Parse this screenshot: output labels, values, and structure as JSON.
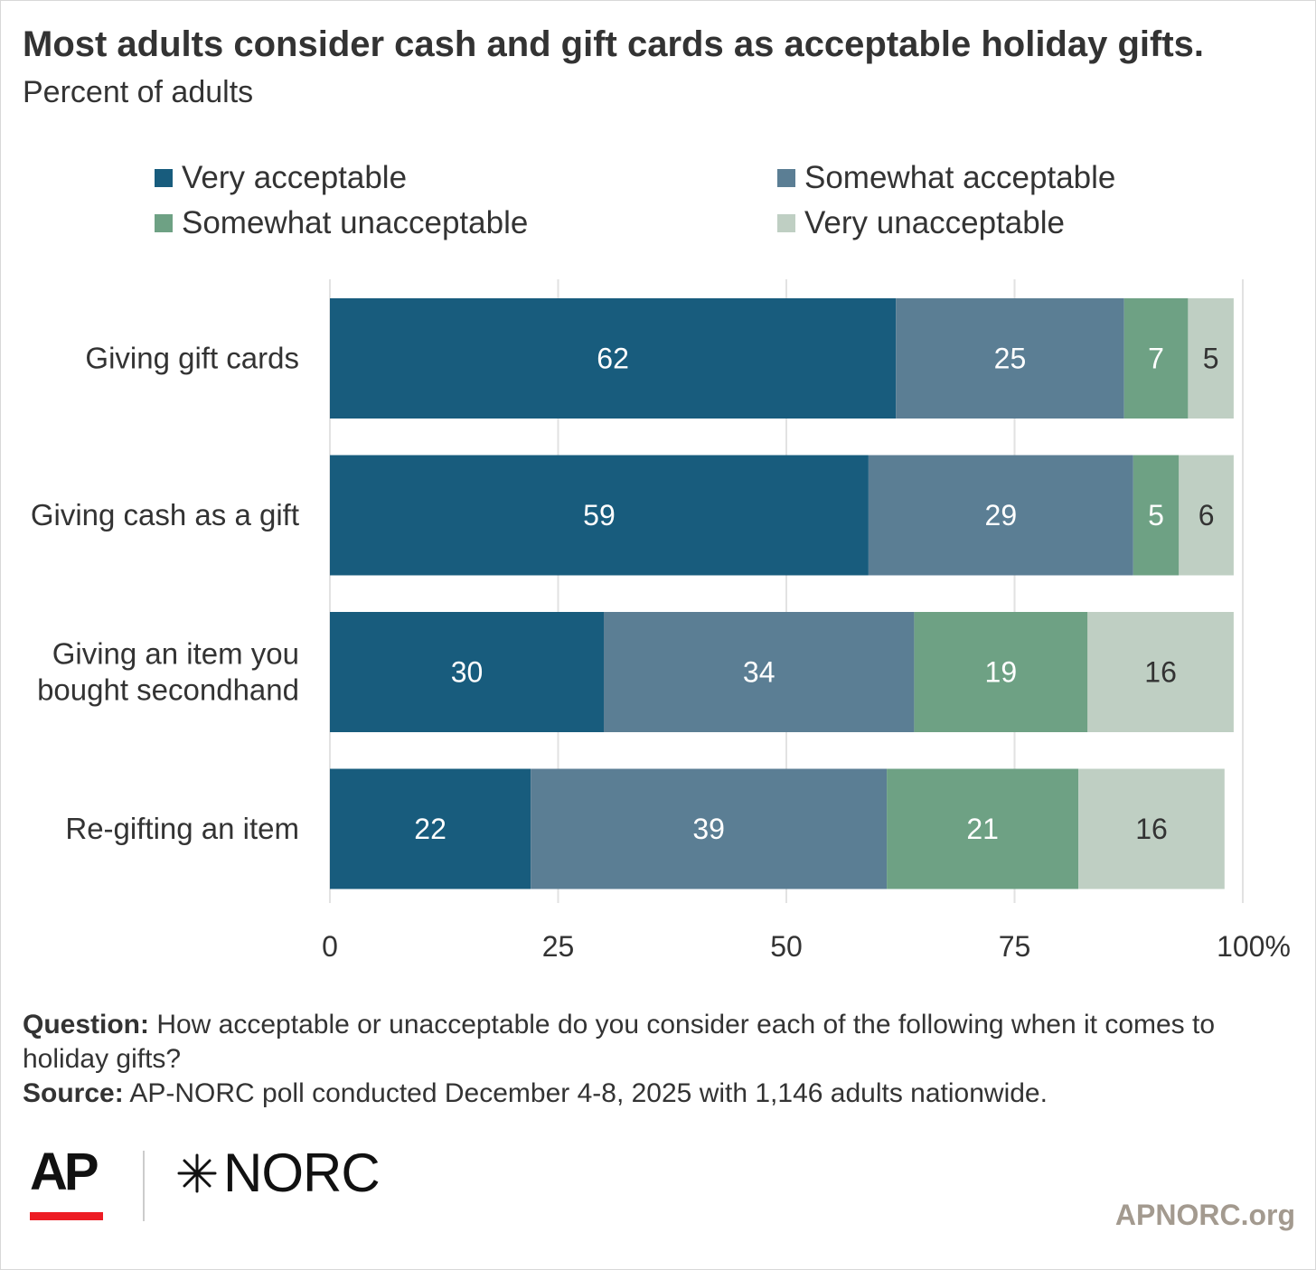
{
  "title": "Most adults consider cash and gift cards as acceptable holiday gifts.",
  "subtitle": "Percent of adults",
  "legend": [
    {
      "label": "Very acceptable",
      "color": "#185c7d"
    },
    {
      "label": "Somewhat acceptable",
      "color": "#5b7e94"
    },
    {
      "label": "Somewhat unacceptable",
      "color": "#6ea184"
    },
    {
      "label": "Very unacceptable",
      "color": "#bfcfc3"
    }
  ],
  "chart_data": {
    "type": "bar",
    "orientation": "horizontal",
    "stacked": true,
    "categories": [
      [
        "Giving gift cards"
      ],
      [
        "Giving cash as a gift"
      ],
      [
        "Giving an item you",
        "bought secondhand"
      ],
      [
        "Re-gifting an item"
      ]
    ],
    "series": [
      {
        "name": "Very acceptable",
        "color": "#185c7d",
        "label_color": "#ffffff",
        "values": [
          62,
          59,
          30,
          22
        ]
      },
      {
        "name": "Somewhat acceptable",
        "color": "#5b7e94",
        "label_color": "#ffffff",
        "values": [
          25,
          29,
          34,
          39
        ]
      },
      {
        "name": "Somewhat unacceptable",
        "color": "#6ea184",
        "label_color": "#ffffff",
        "values": [
          7,
          5,
          19,
          21
        ]
      },
      {
        "name": "Very unacceptable",
        "color": "#bfcfc3",
        "label_color": "#333333",
        "values": [
          5,
          6,
          16,
          16
        ]
      }
    ],
    "xticks": [
      "0",
      "25",
      "50",
      "75",
      "100%"
    ],
    "xlim": [
      0,
      100
    ],
    "grid": true,
    "legend_position": "top"
  },
  "notes": {
    "question_label": "Question:",
    "question_text": " How acceptable or unacceptable do you consider each of the following when it comes to holiday gifts?",
    "source_label": "Source:",
    "source_text": " AP-NORC poll conducted December 4-8, 2025 with 1,146 adults nationwide."
  },
  "branding": {
    "ap": "AP",
    "norc": "NORC",
    "site": "APNORC.org"
  }
}
